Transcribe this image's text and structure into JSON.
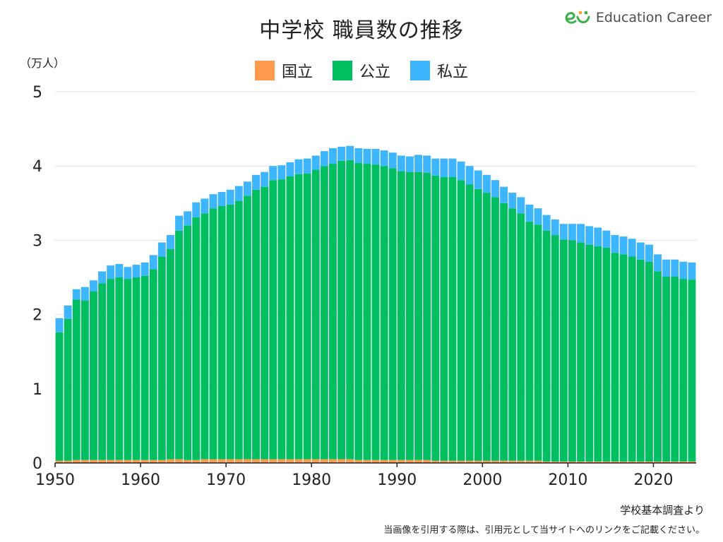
{
  "title": "中学校 職員数の推移",
  "logo": {
    "text": "Education Career"
  },
  "unit_label": "（万人）",
  "source": "学校基本調査より",
  "note": "当画像を引用する際は、引用元として当サイトへのリンクをご記載ください。",
  "colors": {
    "national": "#ff9a4d",
    "public": "#00bf60",
    "private": "#3db5ff",
    "grid": "#e3e3e3",
    "axis": "#222222"
  },
  "chart_data": {
    "type": "bar",
    "stacked": true,
    "title": "中学校 職員数の推移",
    "ylabel": "（万人）",
    "ylim": [
      0,
      5
    ],
    "yticks": [
      0,
      1,
      2,
      3,
      4,
      5
    ],
    "xticks": [
      1950,
      1960,
      1970,
      1980,
      1990,
      2000,
      2010,
      2020
    ],
    "legend_position": "top-center",
    "grid": true,
    "categories": [
      1950,
      1951,
      1952,
      1953,
      1954,
      1955,
      1956,
      1957,
      1958,
      1959,
      1960,
      1961,
      1962,
      1963,
      1964,
      1965,
      1966,
      1967,
      1968,
      1969,
      1970,
      1971,
      1972,
      1973,
      1974,
      1975,
      1976,
      1977,
      1978,
      1979,
      1980,
      1981,
      1982,
      1983,
      1984,
      1985,
      1986,
      1987,
      1988,
      1989,
      1990,
      1991,
      1992,
      1993,
      1994,
      1995,
      1996,
      1997,
      1998,
      1999,
      2000,
      2001,
      2002,
      2003,
      2004,
      2005,
      2006,
      2007,
      2008,
      2009,
      2010,
      2011,
      2012,
      2013,
      2014,
      2015,
      2016,
      2017,
      2018,
      2019,
      2020,
      2021,
      2022,
      2023,
      2024
    ],
    "series": [
      {
        "name": "国立",
        "key": "national",
        "values": [
          0.03,
          0.03,
          0.04,
          0.04,
          0.04,
          0.04,
          0.04,
          0.04,
          0.04,
          0.04,
          0.04,
          0.04,
          0.04,
          0.05,
          0.05,
          0.04,
          0.04,
          0.05,
          0.05,
          0.05,
          0.05,
          0.05,
          0.05,
          0.05,
          0.05,
          0.05,
          0.05,
          0.05,
          0.05,
          0.05,
          0.05,
          0.05,
          0.05,
          0.05,
          0.05,
          0.04,
          0.04,
          0.04,
          0.04,
          0.04,
          0.04,
          0.04,
          0.04,
          0.04,
          0.03,
          0.03,
          0.03,
          0.03,
          0.03,
          0.03,
          0.03,
          0.03,
          0.03,
          0.03,
          0.03,
          0.03,
          0.03,
          0.02,
          0.02,
          0.02,
          0.02,
          0.02,
          0.02,
          0.02,
          0.02,
          0.02,
          0.02,
          0.02,
          0.02,
          0.02,
          0.02,
          0.02,
          0.02,
          0.02,
          0.02
        ]
      },
      {
        "name": "公立",
        "key": "public",
        "values": [
          1.73,
          1.91,
          2.16,
          2.15,
          2.27,
          2.38,
          2.44,
          2.46,
          2.44,
          2.46,
          2.48,
          2.57,
          2.74,
          2.83,
          3.08,
          3.16,
          3.27,
          3.31,
          3.38,
          3.41,
          3.43,
          3.48,
          3.55,
          3.63,
          3.67,
          3.76,
          3.77,
          3.81,
          3.84,
          3.85,
          3.9,
          3.95,
          3.98,
          4.02,
          4.03,
          4.0,
          3.99,
          3.98,
          3.96,
          3.93,
          3.89,
          3.88,
          3.88,
          3.87,
          3.84,
          3.82,
          3.82,
          3.78,
          3.72,
          3.66,
          3.61,
          3.55,
          3.47,
          3.4,
          3.33,
          3.22,
          3.18,
          3.11,
          3.05,
          2.99,
          2.98,
          2.95,
          2.92,
          2.9,
          2.88,
          2.81,
          2.79,
          2.76,
          2.72,
          2.69,
          2.56,
          2.49,
          2.49,
          2.46,
          2.45
        ]
      },
      {
        "name": "私立",
        "key": "private",
        "values": [
          0.19,
          0.18,
          0.14,
          0.18,
          0.15,
          0.16,
          0.18,
          0.18,
          0.16,
          0.17,
          0.18,
          0.19,
          0.19,
          0.19,
          0.2,
          0.19,
          0.2,
          0.2,
          0.19,
          0.19,
          0.2,
          0.2,
          0.19,
          0.2,
          0.2,
          0.19,
          0.19,
          0.19,
          0.2,
          0.2,
          0.19,
          0.2,
          0.21,
          0.19,
          0.19,
          0.2,
          0.2,
          0.21,
          0.21,
          0.21,
          0.21,
          0.21,
          0.23,
          0.23,
          0.23,
          0.25,
          0.25,
          0.25,
          0.25,
          0.25,
          0.24,
          0.23,
          0.22,
          0.21,
          0.22,
          0.23,
          0.22,
          0.21,
          0.21,
          0.21,
          0.22,
          0.25,
          0.25,
          0.25,
          0.23,
          0.24,
          0.24,
          0.24,
          0.23,
          0.23,
          0.23,
          0.23,
          0.23,
          0.23,
          0.23
        ]
      }
    ]
  }
}
